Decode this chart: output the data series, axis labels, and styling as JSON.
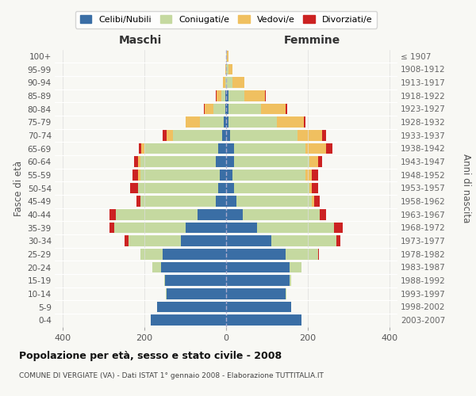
{
  "age_groups_bottom_to_top": [
    "0-4",
    "5-9",
    "10-14",
    "15-19",
    "20-24",
    "25-29",
    "30-34",
    "35-39",
    "40-44",
    "45-49",
    "50-54",
    "55-59",
    "60-64",
    "65-69",
    "70-74",
    "75-79",
    "80-84",
    "85-89",
    "90-94",
    "95-99",
    "100+"
  ],
  "birth_years_bottom_to_top": [
    "2003-2007",
    "1998-2002",
    "1993-1997",
    "1988-1992",
    "1983-1987",
    "1978-1982",
    "1973-1977",
    "1968-1972",
    "1963-1967",
    "1958-1962",
    "1953-1957",
    "1948-1952",
    "1943-1947",
    "1938-1942",
    "1933-1937",
    "1928-1932",
    "1923-1927",
    "1918-1922",
    "1913-1917",
    "1908-1912",
    "≤ 1907"
  ],
  "colors": {
    "celibi": "#3a6ea5",
    "coniugati": "#c5d9a0",
    "vedovi": "#f0c060",
    "divorziati": "#cc2222"
  },
  "maschi": {
    "celibi": [
      185,
      170,
      145,
      150,
      160,
      155,
      110,
      100,
      70,
      25,
      20,
      15,
      25,
      20,
      10,
      5,
      2,
      2,
      0,
      0,
      0
    ],
    "coniugati": [
      0,
      0,
      2,
      2,
      20,
      55,
      130,
      175,
      200,
      185,
      195,
      195,
      185,
      180,
      120,
      60,
      30,
      10,
      2,
      0,
      0
    ],
    "vedovi": [
      0,
      0,
      0,
      0,
      0,
      0,
      0,
      0,
      0,
      0,
      0,
      5,
      5,
      8,
      15,
      35,
      20,
      12,
      5,
      2,
      0
    ],
    "divorziati": [
      0,
      0,
      0,
      0,
      0,
      0,
      8,
      10,
      15,
      10,
      20,
      15,
      10,
      5,
      10,
      0,
      2,
      2,
      0,
      0,
      0
    ]
  },
  "femmine": {
    "celibi": [
      185,
      160,
      145,
      155,
      155,
      145,
      110,
      75,
      40,
      25,
      20,
      15,
      20,
      20,
      10,
      5,
      5,
      5,
      0,
      0,
      0
    ],
    "coniugati": [
      0,
      0,
      2,
      5,
      30,
      80,
      160,
      190,
      190,
      185,
      185,
      180,
      185,
      175,
      165,
      120,
      80,
      40,
      15,
      5,
      2
    ],
    "vedovi": [
      0,
      0,
      0,
      0,
      0,
      0,
      0,
      0,
      0,
      5,
      5,
      15,
      20,
      50,
      60,
      65,
      60,
      50,
      30,
      10,
      3
    ],
    "divorziati": [
      0,
      0,
      0,
      0,
      0,
      2,
      10,
      20,
      15,
      15,
      15,
      15,
      10,
      15,
      10,
      5,
      5,
      2,
      0,
      0,
      0
    ]
  },
  "title": "Popolazione per età, sesso e stato civile - 2008",
  "subtitle": "COMUNE DI VERGIATE (VA) - Dati ISTAT 1° gennaio 2008 - Elaborazione TUTTITALIA.IT",
  "xlabel_maschi": "Maschi",
  "xlabel_femmine": "Femmine",
  "ylabel_left": "Fasce di età",
  "ylabel_right": "Anni di nascita",
  "xlim": 420,
  "legend_labels": [
    "Celibi/Nubili",
    "Coniugati/e",
    "Vedovi/e",
    "Divorziati/e"
  ],
  "background_color": "#f8f8f4"
}
